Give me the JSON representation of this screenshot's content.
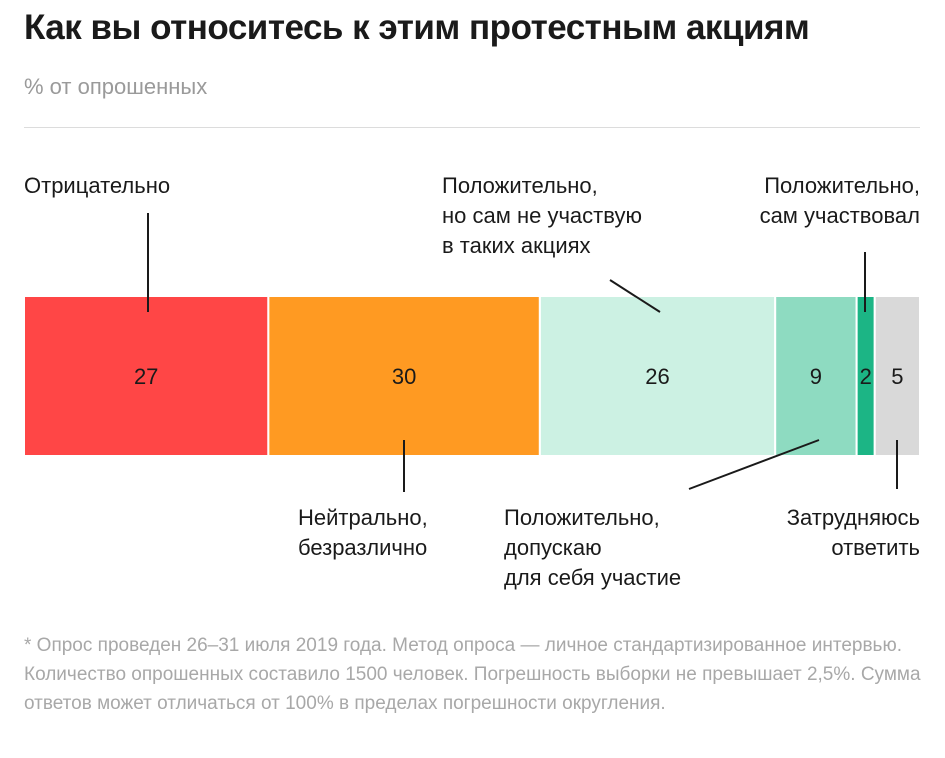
{
  "title": "Как вы относитесь к этим протестным акциям",
  "subtitle": "% от опрошенных",
  "chart_data": {
    "type": "bar",
    "orientation": "horizontal-stacked",
    "xlim": [
      0,
      99
    ],
    "segments": [
      {
        "label": [
          "Отрицательно"
        ],
        "value": 27,
        "color": "#ff4646",
        "label_side": "top"
      },
      {
        "label": [
          "Нейтрально,",
          "безразлично"
        ],
        "value": 30,
        "color": "#ff9a22",
        "label_side": "bottom"
      },
      {
        "label": [
          "Положительно,",
          "но сам не участвую",
          "в таких акциях"
        ],
        "value": 26,
        "color": "#ccf1e3",
        "label_side": "top"
      },
      {
        "label": [
          "Положительно,",
          "допускаю",
          "для себя участие"
        ],
        "value": 9,
        "color": "#8edbc1",
        "label_side": "bottom"
      },
      {
        "label": [
          "Положительно,",
          "сам участвовал"
        ],
        "value": 2,
        "color": "#1cb585",
        "label_side": "top"
      },
      {
        "label": [
          "Затрудняюсь",
          "ответить"
        ],
        "value": 5,
        "color": "#d9d9d9",
        "label_side": "bottom"
      }
    ]
  },
  "footnote": "* Опрос проведен 26–31 июля 2019 года. Метод опроса — личное стандартизированное интервью. Количество опрошенных составило 1500 человек. Погрешность выборки не превышает 2,5%. Сумма ответов может отличаться от 100% в пределах погрешности округления."
}
